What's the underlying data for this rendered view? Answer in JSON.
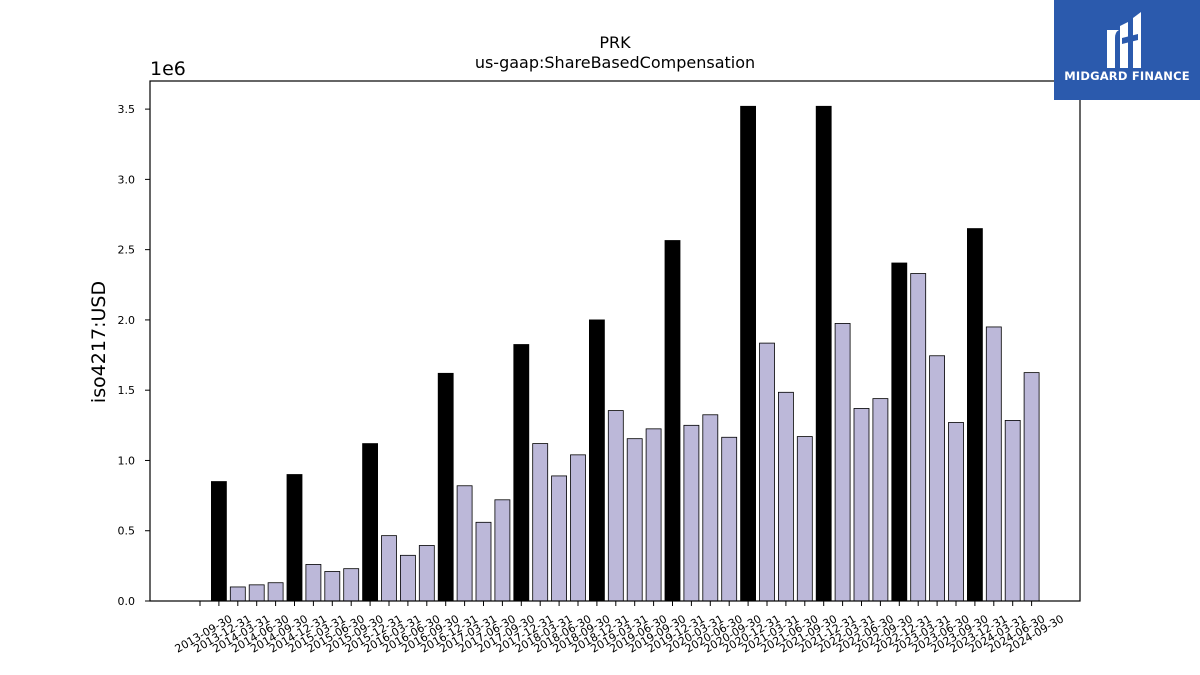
{
  "chart_data": {
    "type": "bar",
    "title": "PRK",
    "subtitle": "us-gaap:ShareBasedCompensation",
    "xlabel": "",
    "ylabel": "iso4217:USD",
    "scale_label": "1e6",
    "ylim": [
      0,
      3700000
    ],
    "yticks": [
      0.0,
      0.5,
      1.0,
      1.5,
      2.0,
      2.5,
      3.0,
      3.5
    ],
    "grid": false,
    "categories": [
      "2013-09-30",
      "2013-12-31",
      "2014-03-31",
      "2014-06-30",
      "2014-09-30",
      "2014-12-31",
      "2015-03-31",
      "2015-06-30",
      "2015-09-30",
      "2015-12-31",
      "2016-03-31",
      "2016-06-30",
      "2016-09-30",
      "2016-12-31",
      "2017-03-31",
      "2017-06-30",
      "2017-09-30",
      "2017-12-31",
      "2018-03-31",
      "2018-06-30",
      "2018-09-30",
      "2018-12-31",
      "2019-03-31",
      "2019-06-30",
      "2019-09-30",
      "2019-12-31",
      "2020-03-31",
      "2020-06-30",
      "2020-09-30",
      "2020-12-31",
      "2021-03-31",
      "2021-06-30",
      "2021-09-30",
      "2021-12-31",
      "2022-03-31",
      "2022-06-30",
      "2022-09-30",
      "2022-12-31",
      "2023-03-31",
      "2023-06-30",
      "2023-09-30",
      "2023-12-31",
      "2024-03-31",
      "2024-06-30",
      "2024-09-30"
    ],
    "values": [
      0,
      850000,
      100000,
      115000,
      130000,
      900000,
      260000,
      210000,
      230000,
      1120000,
      465000,
      325000,
      395000,
      1620000,
      820000,
      560000,
      720000,
      1825000,
      1120000,
      890000,
      1040000,
      2000000,
      1355000,
      1155000,
      1225000,
      2565000,
      1250000,
      1325000,
      1165000,
      3520000,
      1835000,
      1485000,
      1170000,
      3520000,
      1975000,
      1370000,
      1440000,
      2405000,
      2330000,
      1745000,
      1270000,
      2650000,
      1950000,
      1285000,
      1625000
    ],
    "annual_flags": [
      false,
      true,
      false,
      false,
      false,
      true,
      false,
      false,
      false,
      true,
      false,
      false,
      false,
      true,
      false,
      false,
      false,
      true,
      false,
      false,
      false,
      true,
      false,
      false,
      false,
      true,
      false,
      false,
      false,
      true,
      false,
      false,
      false,
      true,
      false,
      false,
      false,
      true,
      false,
      false,
      false,
      true,
      false,
      false,
      false
    ],
    "colors": {
      "annual": "#000000",
      "quarterly": "#bcb8d9",
      "edge": "#000000"
    }
  },
  "logo": {
    "text": "MIDGARD FINANCE",
    "bg": "#2b5aad"
  }
}
